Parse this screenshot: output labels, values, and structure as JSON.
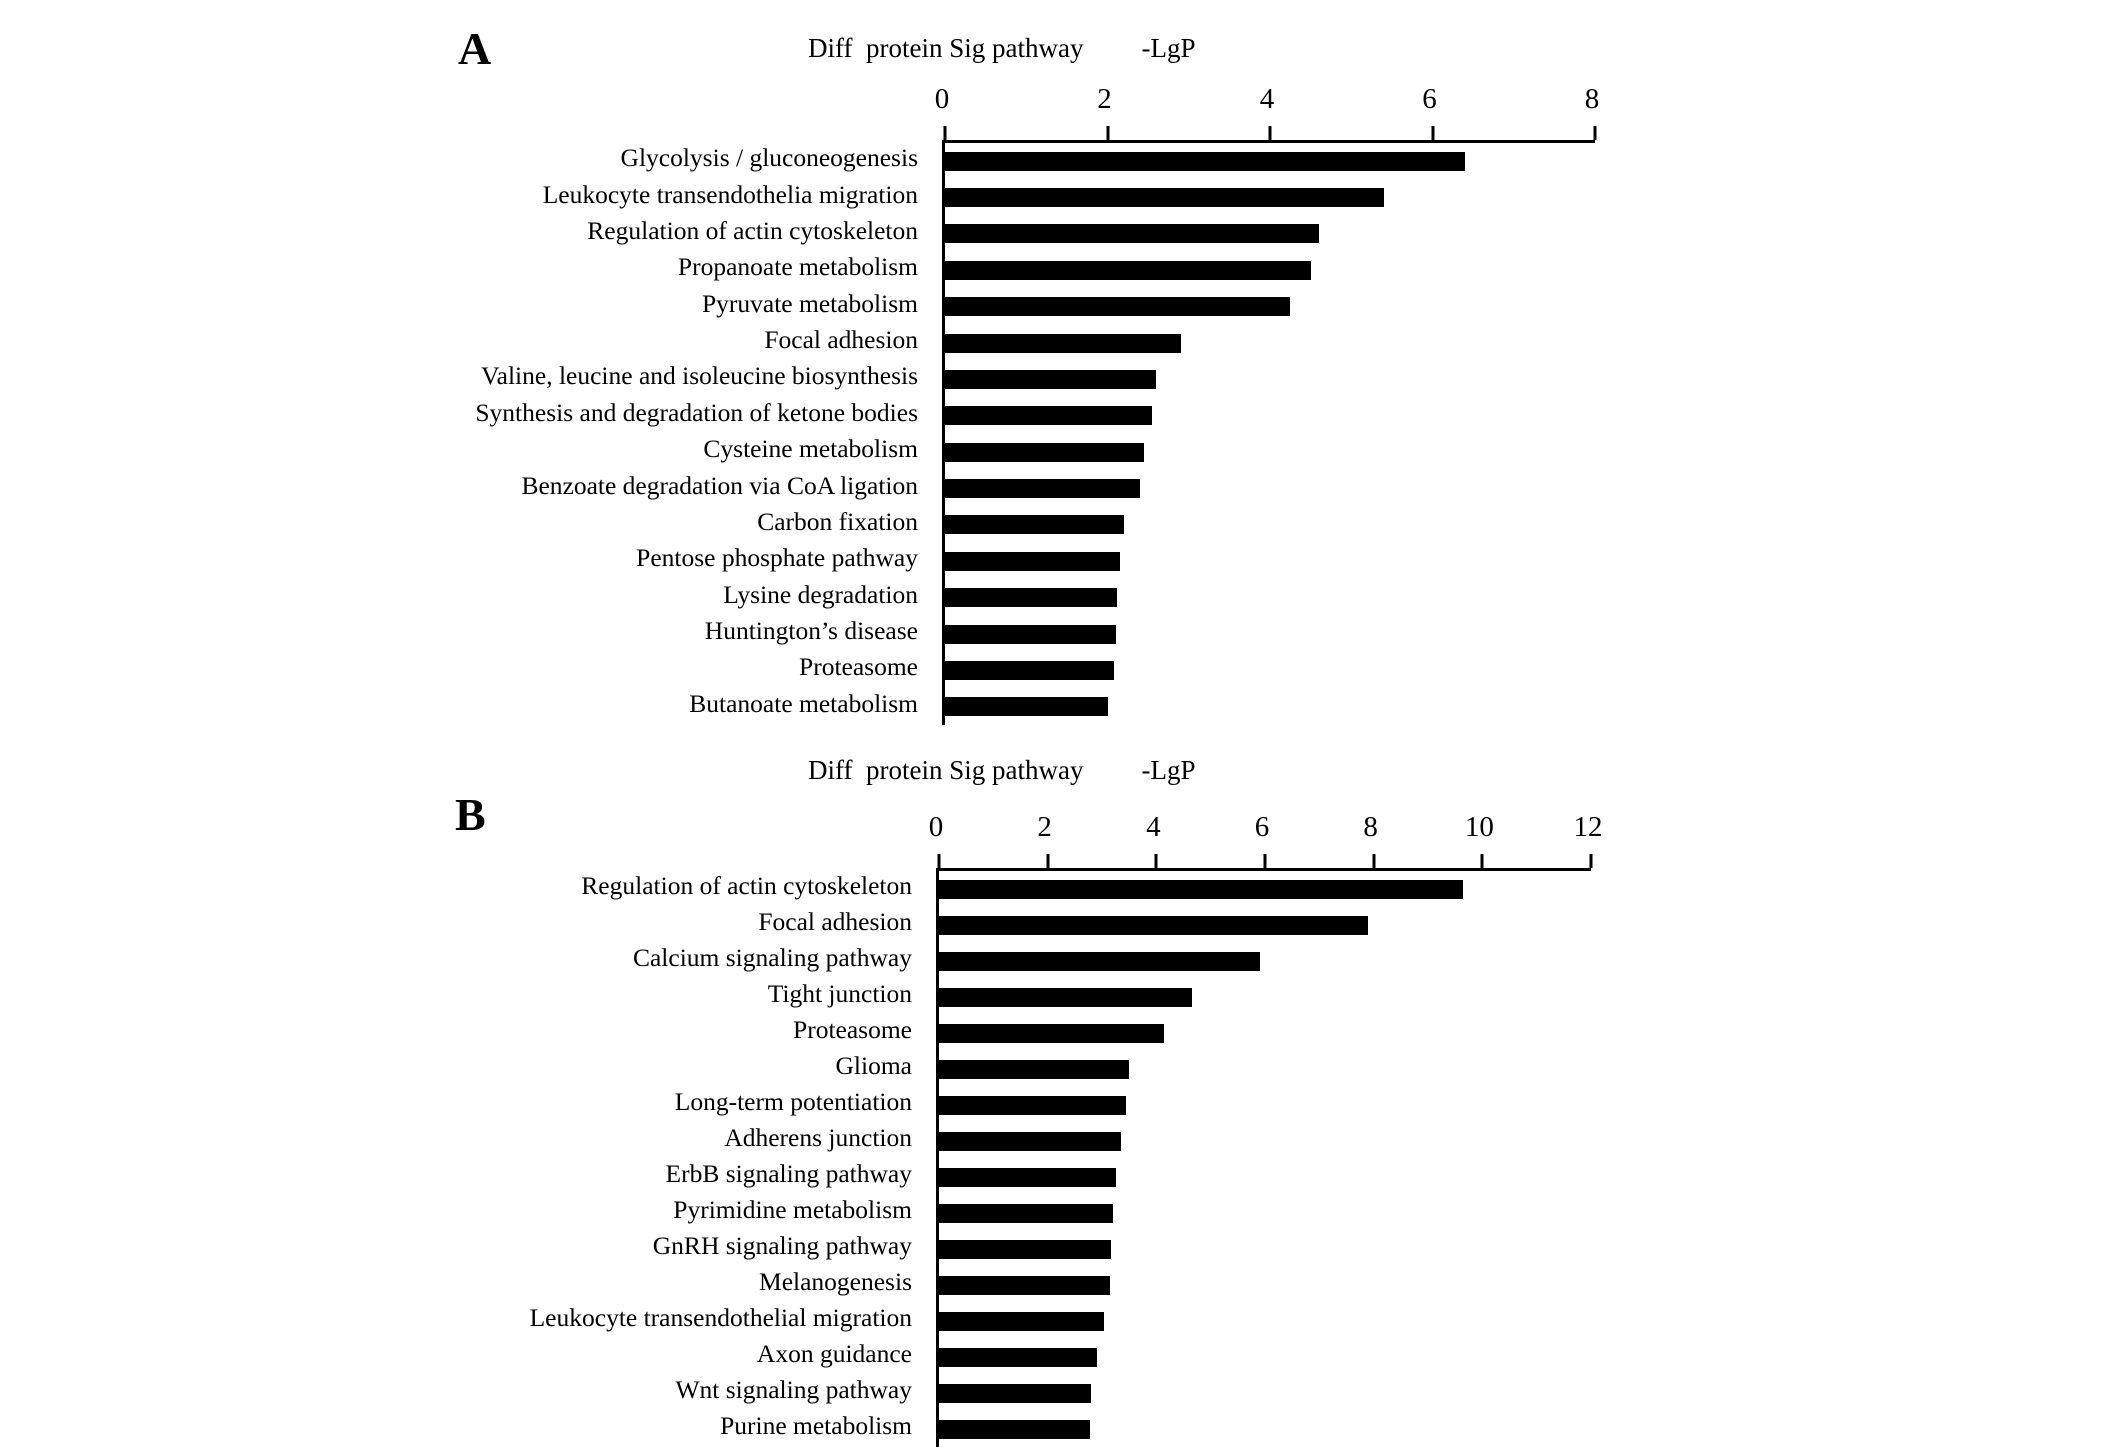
{
  "figure": {
    "background": "#ffffff",
    "bar_color": "#000000",
    "text_color": "#000000"
  },
  "chart_data": [
    {
      "type": "bar",
      "panel_label": "A",
      "title": "Diff  protein Sig pathway",
      "value_header": "-LgP",
      "orientation": "horizontal",
      "axis_position": "top",
      "grid": false,
      "legend": "none",
      "xlabel": "-LgP",
      "ylabel": "Sig pathway",
      "xlim": [
        0,
        8
      ],
      "xticks": [
        0,
        2,
        4,
        6,
        8
      ],
      "categories": [
        "Glycolysis / gluconeogenesis",
        "Leukocyte transendothelia migration",
        "Regulation of actin cytoskeleton",
        "Propanoate metabolism",
        "Pyruvate metabolism",
        "Focal adhesion",
        "Valine, leucine and isoleucine biosynthesis",
        "Synthesis and degradation of ketone bodies",
        "Cysteine metabolism",
        "Benzoate degradation via CoA ligation",
        "Carbon fixation",
        "Pentose phosphate pathway",
        "Lysine degradation",
        "Huntington’s disease",
        "Proteasome",
        "Butanoate metabolism"
      ],
      "values": [
        6.4,
        5.4,
        4.6,
        4.5,
        4.25,
        2.9,
        2.6,
        2.55,
        2.45,
        2.4,
        2.2,
        2.15,
        2.12,
        2.1,
        2.08,
        2.0
      ]
    },
    {
      "type": "bar",
      "panel_label": "B",
      "title": "Diff  protein Sig pathway",
      "value_header": "-LgP",
      "orientation": "horizontal",
      "axis_position": "top",
      "grid": false,
      "legend": "none",
      "xlabel": "-LgP",
      "ylabel": "Sig pathway",
      "xlim": [
        0,
        12
      ],
      "xticks": [
        0,
        2,
        4,
        6,
        8,
        10,
        12
      ],
      "categories": [
        "Regulation of actin cytoskeleton",
        "Focal adhesion",
        "Calcium signaling pathway",
        "Tight junction",
        "Proteasome",
        "Glioma",
        "Long-term potentiation",
        "Adherens junction",
        "ErbB signaling pathway",
        "Pyrimidine metabolism",
        "GnRH signaling pathway",
        "Melanogenesis",
        "Leukocyte transendothelial migration",
        "Axon guidance",
        "Wnt signaling pathway",
        "Purine metabolism"
      ],
      "values": [
        9.65,
        7.9,
        5.9,
        4.65,
        4.15,
        3.5,
        3.45,
        3.35,
        3.25,
        3.2,
        3.17,
        3.15,
        3.03,
        2.9,
        2.8,
        2.78
      ]
    }
  ]
}
